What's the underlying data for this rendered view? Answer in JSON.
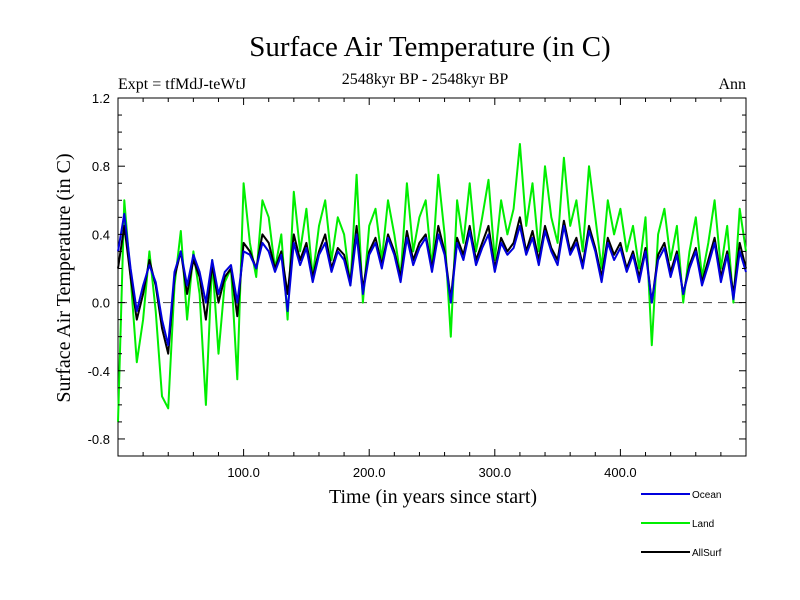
{
  "chart_data": {
    "type": "line",
    "title": "Surface Air Temperature (in C)",
    "experiment_label": "Expt = tfMdJ-teWtJ",
    "period_label": "2548kyr BP - 2548kyr BP",
    "season_label": "Ann",
    "xlabel": "Time (in years since start)",
    "ylabel": "Surface Air Temperature (in C)",
    "xlim": [
      0,
      500
    ],
    "ylim": [
      -0.9,
      1.2
    ],
    "x_ticks": [
      100,
      200,
      300,
      400
    ],
    "x_tick_labels": [
      "100.0",
      "200.0",
      "300.0",
      "400.0"
    ],
    "y_ticks": [
      -0.8,
      -0.4,
      0.0,
      0.4,
      0.8,
      1.2
    ],
    "y_tick_labels": [
      "-0.8",
      "-0.4",
      "0.0",
      "0.4",
      "0.8",
      "1.2"
    ],
    "reference_line": 0.0,
    "legend_position": "bottom-right",
    "series": [
      {
        "name": "Land",
        "color": "#00ee00",
        "x": [
          0,
          5,
          10,
          15,
          20,
          25,
          30,
          35,
          40,
          45,
          50,
          55,
          60,
          65,
          70,
          75,
          80,
          85,
          90,
          95,
          100,
          105,
          110,
          115,
          120,
          125,
          130,
          135,
          140,
          145,
          150,
          155,
          160,
          165,
          170,
          175,
          180,
          185,
          190,
          195,
          200,
          205,
          210,
          215,
          220,
          225,
          230,
          235,
          240,
          245,
          250,
          255,
          260,
          265,
          270,
          275,
          280,
          285,
          290,
          295,
          300,
          305,
          310,
          315,
          320,
          325,
          330,
          335,
          340,
          345,
          350,
          355,
          360,
          365,
          370,
          375,
          380,
          385,
          390,
          395,
          400,
          405,
          410,
          415,
          420,
          425,
          430,
          435,
          440,
          445,
          450,
          455,
          460,
          465,
          470,
          475,
          480,
          485,
          490,
          495,
          500
        ],
        "values": [
          -0.7,
          0.6,
          0.15,
          -0.35,
          -0.1,
          0.3,
          -0.05,
          -0.55,
          -0.62,
          0.1,
          0.42,
          -0.1,
          0.3,
          0.05,
          -0.6,
          0.25,
          -0.3,
          0.12,
          0.2,
          -0.45,
          0.7,
          0.35,
          0.15,
          0.6,
          0.5,
          0.2,
          0.4,
          -0.1,
          0.65,
          0.3,
          0.55,
          0.15,
          0.45,
          0.6,
          0.25,
          0.5,
          0.4,
          0.1,
          0.75,
          0.0,
          0.45,
          0.55,
          0.25,
          0.6,
          0.4,
          0.15,
          0.7,
          0.3,
          0.5,
          0.6,
          0.2,
          0.75,
          0.4,
          -0.2,
          0.6,
          0.35,
          0.7,
          0.3,
          0.5,
          0.72,
          0.25,
          0.6,
          0.4,
          0.55,
          0.93,
          0.45,
          0.7,
          0.3,
          0.8,
          0.5,
          0.35,
          0.85,
          0.45,
          0.6,
          0.3,
          0.8,
          0.5,
          0.2,
          0.6,
          0.4,
          0.55,
          0.3,
          0.45,
          0.2,
          0.5,
          -0.25,
          0.4,
          0.55,
          0.25,
          0.45,
          0.0,
          0.3,
          0.5,
          0.15,
          0.35,
          0.6,
          0.2,
          0.45,
          0.0,
          0.55,
          0.3
        ]
      },
      {
        "name": "AllSurf",
        "color": "#000000",
        "x": [
          0,
          5,
          10,
          15,
          20,
          25,
          30,
          35,
          40,
          45,
          50,
          55,
          60,
          65,
          70,
          75,
          80,
          85,
          90,
          95,
          100,
          105,
          110,
          115,
          120,
          125,
          130,
          135,
          140,
          145,
          150,
          155,
          160,
          165,
          170,
          175,
          180,
          185,
          190,
          195,
          200,
          205,
          210,
          215,
          220,
          225,
          230,
          235,
          240,
          245,
          250,
          255,
          260,
          265,
          270,
          275,
          280,
          285,
          290,
          295,
          300,
          305,
          310,
          315,
          320,
          325,
          330,
          335,
          340,
          345,
          350,
          355,
          360,
          365,
          370,
          375,
          380,
          385,
          390,
          395,
          400,
          405,
          410,
          415,
          420,
          425,
          430,
          435,
          440,
          445,
          450,
          455,
          460,
          465,
          470,
          475,
          480,
          485,
          490,
          495,
          500
        ],
        "values": [
          0.2,
          0.45,
          0.15,
          -0.1,
          0.05,
          0.25,
          0.1,
          -0.15,
          -0.3,
          0.15,
          0.3,
          0.05,
          0.25,
          0.15,
          -0.1,
          0.22,
          0.0,
          0.15,
          0.2,
          -0.08,
          0.35,
          0.3,
          0.2,
          0.4,
          0.35,
          0.2,
          0.3,
          0.05,
          0.4,
          0.25,
          0.35,
          0.15,
          0.3,
          0.4,
          0.2,
          0.32,
          0.28,
          0.12,
          0.45,
          0.08,
          0.3,
          0.38,
          0.22,
          0.4,
          0.3,
          0.15,
          0.42,
          0.25,
          0.35,
          0.4,
          0.2,
          0.45,
          0.3,
          0.02,
          0.38,
          0.28,
          0.45,
          0.25,
          0.35,
          0.45,
          0.2,
          0.38,
          0.3,
          0.35,
          0.5,
          0.3,
          0.42,
          0.25,
          0.45,
          0.32,
          0.25,
          0.48,
          0.3,
          0.38,
          0.22,
          0.45,
          0.32,
          0.15,
          0.38,
          0.28,
          0.35,
          0.2,
          0.3,
          0.15,
          0.32,
          0.0,
          0.28,
          0.35,
          0.18,
          0.3,
          0.05,
          0.22,
          0.32,
          0.12,
          0.25,
          0.38,
          0.15,
          0.3,
          0.05,
          0.35,
          0.2
        ]
      },
      {
        "name": "Ocean",
        "color": "#0000dd",
        "x": [
          0,
          5,
          10,
          15,
          20,
          25,
          30,
          35,
          40,
          45,
          50,
          55,
          60,
          65,
          70,
          75,
          80,
          85,
          90,
          95,
          100,
          105,
          110,
          115,
          120,
          125,
          130,
          135,
          140,
          145,
          150,
          155,
          160,
          165,
          170,
          175,
          180,
          185,
          190,
          195,
          200,
          205,
          210,
          215,
          220,
          225,
          230,
          235,
          240,
          245,
          250,
          255,
          260,
          265,
          270,
          275,
          280,
          285,
          290,
          295,
          300,
          305,
          310,
          315,
          320,
          325,
          330,
          335,
          340,
          345,
          350,
          355,
          360,
          365,
          370,
          375,
          380,
          385,
          390,
          395,
          400,
          405,
          410,
          415,
          420,
          425,
          430,
          435,
          440,
          445,
          450,
          455,
          460,
          465,
          470,
          475,
          480,
          485,
          490,
          495,
          500
        ],
        "values": [
          0.3,
          0.52,
          0.2,
          -0.05,
          0.1,
          0.22,
          0.12,
          -0.1,
          -0.25,
          0.18,
          0.3,
          0.1,
          0.28,
          0.18,
          0.0,
          0.25,
          0.05,
          0.18,
          0.22,
          0.0,
          0.3,
          0.28,
          0.2,
          0.35,
          0.3,
          0.18,
          0.28,
          -0.05,
          0.35,
          0.22,
          0.32,
          0.12,
          0.28,
          0.35,
          0.18,
          0.3,
          0.25,
          0.1,
          0.4,
          0.05,
          0.28,
          0.35,
          0.2,
          0.38,
          0.28,
          0.12,
          0.38,
          0.22,
          0.32,
          0.38,
          0.18,
          0.4,
          0.28,
          0.0,
          0.35,
          0.25,
          0.42,
          0.22,
          0.32,
          0.4,
          0.18,
          0.35,
          0.28,
          0.32,
          0.45,
          0.28,
          0.38,
          0.22,
          0.42,
          0.3,
          0.22,
          0.45,
          0.28,
          0.35,
          0.2,
          0.42,
          0.3,
          0.12,
          0.35,
          0.25,
          0.32,
          0.18,
          0.28,
          0.12,
          0.3,
          0.0,
          0.25,
          0.32,
          0.15,
          0.28,
          0.05,
          0.2,
          0.3,
          0.1,
          0.22,
          0.35,
          0.12,
          0.28,
          0.02,
          0.3,
          0.18
        ]
      }
    ],
    "legend": [
      "Ocean",
      "Land",
      "AllSurf"
    ]
  },
  "colors": {
    "Ocean": "#0000dd",
    "Land": "#00ee00",
    "AllSurf": "#000000",
    "reference": "#555555"
  }
}
